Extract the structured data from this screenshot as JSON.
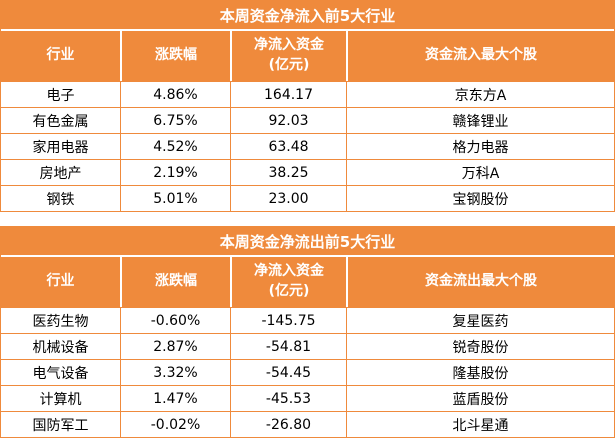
{
  "colors": {
    "accent_orange": "#ef8a3c",
    "header_text": "#ffffff",
    "body_text": "#000000",
    "background": "#ffffff"
  },
  "tables": [
    {
      "title": "本周资金净流入前5大行业",
      "headers": {
        "industry": "行业",
        "change": "涨跌幅",
        "net_line1": "净流入资金",
        "net_line2": "(亿元)",
        "stock": "资金流入最大个股"
      },
      "rows": [
        {
          "industry": "电子",
          "change": "4.86%",
          "net": "164.17",
          "stock": "京东方A"
        },
        {
          "industry": "有色金属",
          "change": "6.75%",
          "net": "92.03",
          "stock": "赣锋锂业"
        },
        {
          "industry": "家用电器",
          "change": "4.52%",
          "net": "63.48",
          "stock": "格力电器"
        },
        {
          "industry": "房地产",
          "change": "2.19%",
          "net": "38.25",
          "stock": "万科A"
        },
        {
          "industry": "钢铁",
          "change": "5.01%",
          "net": "23.00",
          "stock": "宝钢股份"
        }
      ]
    },
    {
      "title": "本周资金净流出前5大行业",
      "headers": {
        "industry": "行业",
        "change": "涨跌幅",
        "net_line1": "净流入资金",
        "net_line2": "(亿元)",
        "stock": "资金流出最大个股"
      },
      "rows": [
        {
          "industry": "医药生物",
          "change": "-0.60%",
          "net": "-145.75",
          "stock": "复星医药"
        },
        {
          "industry": "机械设备",
          "change": "2.87%",
          "net": "-54.81",
          "stock": "锐奇股份"
        },
        {
          "industry": "电气设备",
          "change": "3.32%",
          "net": "-54.45",
          "stock": "隆基股份"
        },
        {
          "industry": "计算机",
          "change": "1.47%",
          "net": "-45.53",
          "stock": "蓝盾股份"
        },
        {
          "industry": "国防军工",
          "change": "-0.02%",
          "net": "-26.80",
          "stock": "北斗星通"
        }
      ]
    }
  ],
  "chart_data": [
    {
      "type": "table",
      "title": "本周资金净流入前5大行业",
      "columns": [
        "行业",
        "涨跌幅",
        "净流入资金(亿元)",
        "资金流入最大个股"
      ],
      "rows": [
        [
          "电子",
          "4.86%",
          164.17,
          "京东方A"
        ],
        [
          "有色金属",
          "6.75%",
          92.03,
          "赣锋锂业"
        ],
        [
          "家用电器",
          "4.52%",
          63.48,
          "格力电器"
        ],
        [
          "房地产",
          "2.19%",
          38.25,
          "万科A"
        ],
        [
          "钢铁",
          "5.01%",
          23.0,
          "宝钢股份"
        ]
      ]
    },
    {
      "type": "table",
      "title": "本周资金净流出前5大行业",
      "columns": [
        "行业",
        "涨跌幅",
        "净流入资金(亿元)",
        "资金流出最大个股"
      ],
      "rows": [
        [
          "医药生物",
          "-0.60%",
          -145.75,
          "复星医药"
        ],
        [
          "机械设备",
          "2.87%",
          -54.81,
          "锐奇股份"
        ],
        [
          "电气设备",
          "3.32%",
          -54.45,
          "隆基股份"
        ],
        [
          "计算机",
          "1.47%",
          -45.53,
          "蓝盾股份"
        ],
        [
          "国防军工",
          "-0.02%",
          -26.8,
          "北斗星通"
        ]
      ]
    }
  ]
}
